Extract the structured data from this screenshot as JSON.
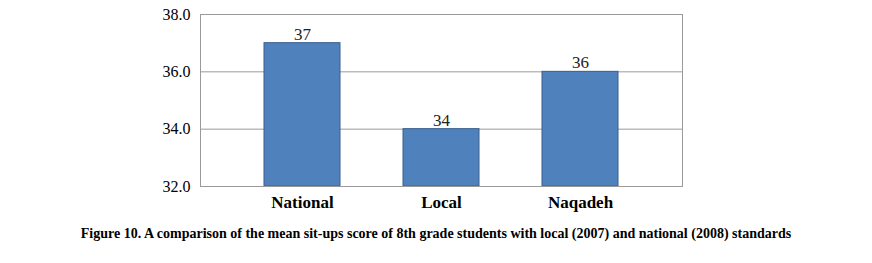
{
  "chart_data": {
    "type": "bar",
    "title": "Figure 10. A comparison of the mean sit-ups score of 8th grade students with local (2007) and national (2008) standards",
    "categories": [
      "National",
      "Local",
      "Naqadeh"
    ],
    "values": [
      37,
      34,
      36
    ],
    "color": "#4f81bd",
    "ylim": [
      32,
      38
    ],
    "yticks": [
      32,
      34,
      36,
      38
    ],
    "grid": true,
    "data_labels": true
  }
}
